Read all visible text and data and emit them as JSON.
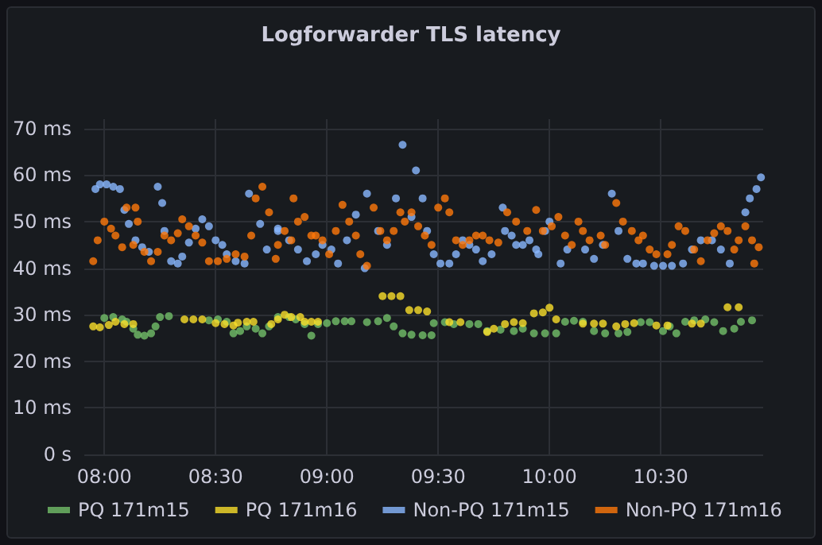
{
  "chart_data": {
    "type": "scatter",
    "title": "Logforwarder TLS latency",
    "marker": "circle",
    "grid": true,
    "legend": "bottom left",
    "xlim": [
      7.91,
      10.96
    ],
    "xticks": [
      {
        "value": 8,
        "label": "08:00"
      },
      {
        "value": 8.5,
        "label": "08:30"
      },
      {
        "value": 9,
        "label": "09:00"
      },
      {
        "value": 9.5,
        "label": "09:30"
      },
      {
        "value": 10,
        "label": "10:00"
      },
      {
        "value": 10.5,
        "label": "10:30"
      }
    ],
    "ylim": [
      0,
      72
    ],
    "yticks": [
      {
        "value": 0,
        "label": "0 s"
      },
      {
        "value": 10,
        "label": "10 ms"
      },
      {
        "value": 20,
        "label": "20 ms"
      },
      {
        "value": 30,
        "label": "30 ms"
      },
      {
        "value": 40,
        "label": "40 ms"
      },
      {
        "value": 50,
        "label": "50 ms"
      },
      {
        "value": 60,
        "label": "60 ms"
      },
      {
        "value": 70,
        "label": "70 ms"
      }
    ],
    "series": [
      {
        "name": "PQ 171m15",
        "color": "#73bf69",
        "x": [
          8.0,
          8.04,
          8.08,
          8.1,
          8.13,
          8.15,
          8.18,
          8.21,
          8.23,
          8.25,
          8.29,
          8.47,
          8.51,
          8.55,
          8.58,
          8.61,
          8.64,
          8.68,
          8.71,
          8.74,
          8.78,
          8.83,
          8.86,
          8.9,
          8.93,
          8.96,
          9.0,
          9.04,
          9.08,
          9.11,
          9.18,
          9.23,
          9.27,
          9.3,
          9.34,
          9.38,
          9.43,
          9.47,
          9.48,
          9.53,
          9.57,
          9.64,
          9.68,
          9.72,
          9.78,
          9.84,
          9.88,
          9.93,
          9.98,
          10.03,
          10.07,
          10.11,
          10.15,
          10.2,
          10.25,
          10.31,
          10.35,
          10.41,
          10.45,
          10.51,
          10.54,
          10.57,
          10.61,
          10.65,
          10.7,
          10.74,
          10.78,
          10.83,
          10.86,
          10.91
        ],
        "values": [
          29.3,
          29.5,
          29,
          28.5,
          27,
          25.7,
          25.5,
          26,
          27.5,
          29.5,
          29.7,
          28.8,
          29,
          28.5,
          26,
          26.5,
          27.5,
          27,
          26,
          27.5,
          29.5,
          29.5,
          29,
          28,
          25.5,
          28,
          28.2,
          28.6,
          28.6,
          28.6,
          28.4,
          28.6,
          29.3,
          27.5,
          26,
          25.7,
          25.6,
          25.6,
          28.2,
          28.4,
          28,
          28,
          28,
          26.5,
          26.8,
          26.5,
          27,
          26,
          26,
          26,
          28.5,
          28.7,
          28.5,
          26.5,
          26,
          26,
          26.3,
          28.4,
          28.4,
          26.5,
          27.5,
          26,
          28.5,
          28.8,
          29,
          28.4,
          26.5,
          27,
          28.5,
          28.8
        ]
      },
      {
        "name": "PQ 171m16",
        "color": "#fade2a",
        "x": [
          7.95,
          7.98,
          8.02,
          8.05,
          8.09,
          8.13,
          8.36,
          8.4,
          8.44,
          8.5,
          8.54,
          8.58,
          8.6,
          8.64,
          8.67,
          8.75,
          8.78,
          8.81,
          8.84,
          8.88,
          8.9,
          8.93,
          8.96,
          9.25,
          9.29,
          9.33,
          9.37,
          9.41,
          9.45,
          9.55,
          9.6,
          9.72,
          9.75,
          9.8,
          9.84,
          9.88,
          9.93,
          9.97,
          10.0,
          10.03,
          10.15,
          10.2,
          10.24,
          10.3,
          10.34,
          10.38,
          10.48,
          10.53,
          10.64,
          10.68,
          10.8,
          10.85
        ],
        "values": [
          27.5,
          27.3,
          27.8,
          28.5,
          28,
          28,
          29,
          29,
          29,
          28.2,
          28,
          27.7,
          28.3,
          28.5,
          28.5,
          28,
          29,
          30,
          29.5,
          29.5,
          28.5,
          28.5,
          28.5,
          34,
          34,
          34,
          31,
          31,
          30.7,
          28.4,
          28.4,
          26.3,
          27,
          28,
          28.4,
          28.2,
          30.3,
          30.5,
          31.5,
          29,
          28.1,
          28.1,
          28.1,
          27.5,
          28,
          28.2,
          27.7,
          27.7,
          28.1,
          28.1,
          31.6,
          31.6
        ]
      },
      {
        "name": "Non-PQ 171m15",
        "color": "#8ab8ff",
        "x": [
          7.96,
          7.98,
          8.01,
          8.04,
          8.07,
          8.09,
          8.11,
          8.14,
          8.17,
          8.2,
          8.24,
          8.26,
          8.27,
          8.3,
          8.33,
          8.35,
          8.38,
          8.41,
          8.44,
          8.47,
          8.5,
          8.53,
          8.55,
          8.59,
          8.63,
          8.65,
          8.7,
          8.73,
          8.78,
          8.78,
          8.83,
          8.87,
          8.91,
          8.95,
          8.98,
          9.02,
          9.05,
          9.09,
          9.13,
          9.17,
          9.18,
          9.23,
          9.27,
          9.31,
          9.34,
          9.38,
          9.4,
          9.43,
          9.45,
          9.48,
          9.51,
          9.55,
          9.58,
          9.61,
          9.64,
          9.67,
          9.7,
          9.74,
          9.77,
          9.79,
          9.8,
          9.83,
          9.85,
          9.88,
          9.91,
          9.94,
          9.95,
          9.98,
          10.0,
          10.05,
          10.08,
          10.13,
          10.16,
          10.2,
          10.24,
          10.28,
          10.31,
          10.35,
          10.39,
          10.42,
          10.47,
          10.51,
          10.55,
          10.6,
          10.64,
          10.68,
          10.73,
          10.77,
          10.81,
          10.85,
          10.88,
          10.9,
          10.93,
          10.95
        ],
        "values": [
          57,
          58,
          58,
          57.5,
          57,
          52.5,
          49.5,
          46,
          44.5,
          43.5,
          57.5,
          54,
          48,
          41.5,
          41,
          42.5,
          45.5,
          48.5,
          50.5,
          49,
          46,
          45,
          43,
          41.5,
          41,
          56,
          49.5,
          44,
          48,
          48.5,
          46,
          44,
          41.5,
          43,
          45,
          44,
          41,
          46,
          51.5,
          40,
          56,
          48,
          45,
          55,
          66.5,
          51,
          61,
          55,
          48,
          43,
          41,
          41,
          43,
          46,
          45,
          44,
          41.5,
          43,
          null,
          53,
          48,
          47,
          45,
          45,
          46,
          44,
          43,
          48,
          50,
          41,
          44,
          null,
          44,
          42,
          45,
          56,
          48,
          42,
          41,
          41,
          40.5,
          40.5,
          40.5,
          41,
          44,
          46,
          46,
          44,
          41,
          null,
          52,
          55,
          57,
          59.5
        ]
      },
      {
        "name": "Non-PQ 171m16",
        "color": "#ff780a",
        "x": [
          7.95,
          7.97,
          8.0,
          8.03,
          8.05,
          8.08,
          8.13,
          8.1,
          8.14,
          8.15,
          8.18,
          8.21,
          8.24,
          8.27,
          8.3,
          8.33,
          8.35,
          8.38,
          8.41,
          8.44,
          8.47,
          8.51,
          8.55,
          8.59,
          8.63,
          8.66,
          8.68,
          8.71,
          8.74,
          8.77,
          8.78,
          8.85,
          8.81,
          8.84,
          8.87,
          8.9,
          8.93,
          8.95,
          8.98,
          9.01,
          9.04,
          9.07,
          9.1,
          9.13,
          9.15,
          9.18,
          9.21,
          9.24,
          9.27,
          9.3,
          9.33,
          9.35,
          9.38,
          9.41,
          9.44,
          9.47,
          9.5,
          9.53,
          9.55,
          9.58,
          9.61,
          9.64,
          9.67,
          9.7,
          9.73,
          9.77,
          9.81,
          9.85,
          9.9,
          9.94,
          9.97,
          10.01,
          10.04,
          10.07,
          10.1,
          10.13,
          10.15,
          10.18,
          10.23,
          10.25,
          10.3,
          10.33,
          10.37,
          10.4,
          10.42,
          10.45,
          10.48,
          10.53,
          10.55,
          10.58,
          10.61,
          10.65,
          10.68,
          10.71,
          10.74,
          10.77,
          10.8,
          10.83,
          10.85,
          10.88,
          10.91,
          10.94,
          10.92
        ],
        "values": [
          41.5,
          46,
          50,
          48.5,
          47,
          44.5,
          45,
          53,
          53,
          50,
          43.5,
          41.5,
          43.5,
          47,
          46,
          47.5,
          50.5,
          49,
          47,
          45.5,
          41.5,
          41.5,
          42,
          43,
          42.5,
          47,
          55,
          57.5,
          52,
          42,
          45,
          55,
          48,
          46,
          50,
          51,
          47,
          47,
          46,
          43,
          48,
          53.6,
          50,
          47,
          43,
          40.5,
          53,
          48,
          46,
          48,
          52,
          50,
          52,
          49,
          47,
          45,
          53,
          55,
          52,
          46,
          45,
          46,
          47,
          47,
          46,
          45.5,
          52,
          50,
          48,
          52.5,
          48,
          49,
          51,
          47,
          45,
          50,
          48,
          46,
          47,
          45,
          54,
          50,
          48,
          46,
          47,
          44,
          43,
          43,
          45,
          49,
          48,
          44,
          41.5,
          46,
          47.5,
          49,
          48,
          44,
          46,
          49,
          46,
          44.5,
          41
        ]
      }
    ]
  }
}
